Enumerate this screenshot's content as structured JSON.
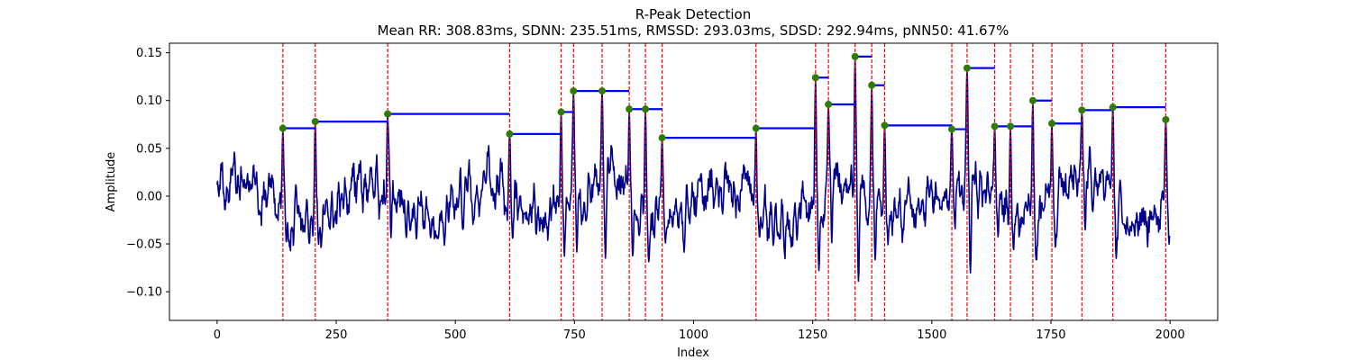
{
  "chart_data": {
    "type": "line",
    "title": "R-Peak Detection",
    "subtitle": "Mean RR: 308.83ms, SDNN: 235.51ms, RMSSD: 293.03ms, SDSD: 292.94ms, pNN50: 41.67%",
    "xlabel": "Index",
    "ylabel": "Amplitude",
    "xlim": [
      -100,
      2100
    ],
    "ylim": [
      -0.13,
      0.16
    ],
    "xticks": [
      0,
      250,
      500,
      750,
      1000,
      1250,
      1500,
      1750,
      2000
    ],
    "yticks": [
      -0.1,
      -0.05,
      0.0,
      0.05,
      0.1,
      0.15
    ],
    "grid": false,
    "colors": {
      "signal": "#00008b",
      "peak_lines": "#ff0000",
      "rr_segments": "#0000ff",
      "peak_markers": "#2e7d00"
    },
    "signal": {
      "length": 2000,
      "approx_range": [
        -0.115,
        0.147
      ]
    },
    "peaks": [
      {
        "x": 138,
        "y": 0.071
      },
      {
        "x": 206,
        "y": 0.078
      },
      {
        "x": 358,
        "y": 0.086
      },
      {
        "x": 614,
        "y": 0.065
      },
      {
        "x": 722,
        "y": 0.088
      },
      {
        "x": 748,
        "y": 0.11
      },
      {
        "x": 808,
        "y": 0.11
      },
      {
        "x": 865,
        "y": 0.091
      },
      {
        "x": 899,
        "y": 0.091
      },
      {
        "x": 934,
        "y": 0.061
      },
      {
        "x": 1131,
        "y": 0.071
      },
      {
        "x": 1256,
        "y": 0.124
      },
      {
        "x": 1283,
        "y": 0.096
      },
      {
        "x": 1339,
        "y": 0.146
      },
      {
        "x": 1374,
        "y": 0.116
      },
      {
        "x": 1401,
        "y": 0.074
      },
      {
        "x": 1542,
        "y": 0.07
      },
      {
        "x": 1574,
        "y": 0.134
      },
      {
        "x": 1632,
        "y": 0.073
      },
      {
        "x": 1665,
        "y": 0.073
      },
      {
        "x": 1712,
        "y": 0.1
      },
      {
        "x": 1752,
        "y": 0.076
      },
      {
        "x": 1815,
        "y": 0.09
      },
      {
        "x": 1880,
        "y": 0.093
      },
      {
        "x": 1991,
        "y": 0.08
      }
    ],
    "rr_segment_end_x": 1632
  }
}
